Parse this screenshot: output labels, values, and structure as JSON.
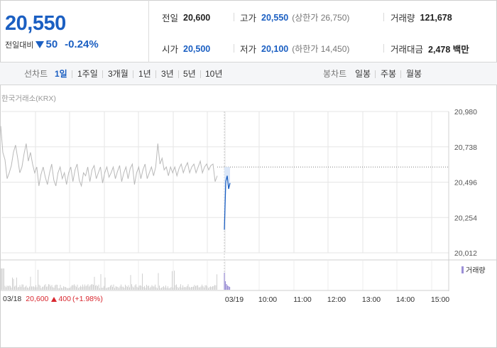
{
  "quote": {
    "price": "20,550",
    "change_label": "전일대비",
    "change": "50",
    "change_pct": "-0.24%"
  },
  "stats": {
    "prev_close_label": "전일",
    "prev_close": "20,600",
    "high_label": "고가",
    "high": "20,550",
    "upper_limit": "(상한가 26,750)",
    "volume_label": "거래량",
    "volume": "121,678",
    "open_label": "시가",
    "open": "20,500",
    "low_label": "저가",
    "low": "20,100",
    "lower_limit": "(하한가 14,450)",
    "amount_label": "거래대금",
    "amount": "2,478 백만"
  },
  "toolbar": {
    "line_label": "선차트",
    "line_periods": [
      "1일",
      "1주일",
      "3개월",
      "1년",
      "3년",
      "5년",
      "10년"
    ],
    "active_period": "1일",
    "candle_label": "봉차트",
    "candle_periods": [
      "일봉",
      "주봉",
      "월봉"
    ]
  },
  "chart_source": "한국거래소(KRX)",
  "colors": {
    "accent": "#1b5fc2",
    "up": "#d8262e",
    "volume": "#9b8fd6"
  },
  "chart_data": {
    "type": "line",
    "y_ticks": [
      "20,980",
      "20,738",
      "20,496",
      "20,254",
      "20,012"
    ],
    "ylim": [
      20012,
      20980
    ],
    "prev_close": 20600,
    "x_ticks": [
      "03/18",
      "03/19",
      "10:00",
      "11:00",
      "12:00",
      "13:00",
      "14:00",
      "15:00"
    ],
    "prev_day_summary": {
      "date": "03/18",
      "close": "20,600",
      "change": "400",
      "change_pct": "(+1.98%)"
    },
    "volume_legend": "거래량",
    "series": [
      {
        "values_prev_day": [
          20880,
          20700,
          20650,
          20520,
          20560,
          20610,
          20700,
          20750,
          20660,
          20560,
          20600,
          20690,
          20760,
          20640,
          20700,
          20620,
          20560,
          20600,
          20470,
          20550,
          20600,
          20530,
          20480,
          20560,
          20620,
          20510,
          20470,
          20560,
          20600,
          20520,
          20560,
          20480,
          20560,
          20600,
          20500,
          20580,
          20620,
          20510,
          20470,
          20560,
          20540,
          20600,
          20500,
          20580,
          20610,
          20520,
          20560,
          20600,
          20490,
          20560,
          20600,
          20530,
          20560,
          20600,
          20520,
          20570,
          20610,
          20500,
          20560,
          20600,
          20520,
          20590,
          20620,
          20480,
          20560,
          20600,
          20520,
          20580,
          20620,
          20520,
          20560,
          20600,
          20540,
          20600,
          20760,
          20620,
          20660,
          20580,
          20600,
          20540,
          20600,
          20560,
          20600,
          20540,
          20590,
          20620,
          20560,
          20600,
          20630,
          20560,
          20600,
          20620,
          20560,
          20600,
          20640,
          20560,
          20600,
          20620,
          20580,
          20610,
          20620,
          20500,
          20540
        ],
        "values_today": [
          20170,
          20500,
          20540,
          20450,
          20490
        ]
      }
    ]
  }
}
